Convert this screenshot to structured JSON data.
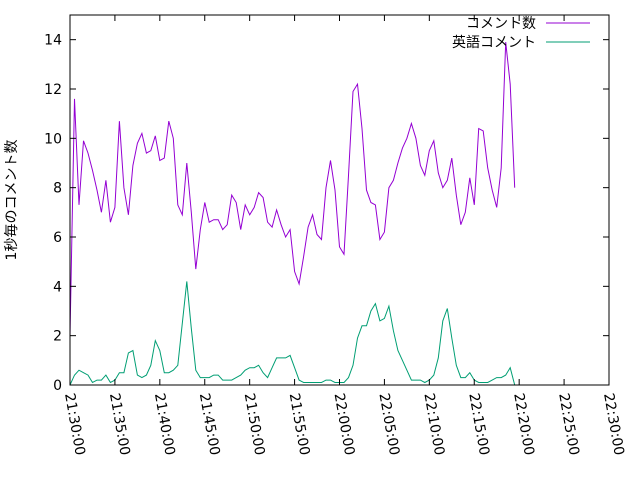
{
  "chart_data": {
    "type": "line",
    "ylabel": "1秒毎のコメント数",
    "xlabel": "",
    "title": "",
    "ylim": [
      0,
      15
    ],
    "xlim": [
      "21:30:00",
      "22:30:00"
    ],
    "x_ticks": [
      "21:30:00",
      "21:35:00",
      "21:40:00",
      "21:45:00",
      "21:50:00",
      "21:55:00",
      "22:00:00",
      "22:05:00",
      "22:10:00",
      "22:15:00",
      "22:20:00",
      "22:25:00",
      "22:30:00"
    ],
    "y_ticks": [
      "0",
      "2",
      "4",
      "6",
      "8",
      "10",
      "12",
      "14"
    ],
    "legend_position": "top-right",
    "grid": false,
    "series": [
      {
        "name": "コメント数",
        "color": "#9400d3",
        "points": [
          [
            "21:30:00",
            2.0
          ],
          [
            "21:30:30",
            11.6
          ],
          [
            "21:31:00",
            7.3
          ],
          [
            "21:31:30",
            9.9
          ],
          [
            "21:32:00",
            9.4
          ],
          [
            "21:32:30",
            8.7
          ],
          [
            "21:33:00",
            7.9
          ],
          [
            "21:33:30",
            7.0
          ],
          [
            "21:34:00",
            8.3
          ],
          [
            "21:34:30",
            6.6
          ],
          [
            "21:35:00",
            7.2
          ],
          [
            "21:35:30",
            10.7
          ],
          [
            "21:36:00",
            8.0
          ],
          [
            "21:36:30",
            6.9
          ],
          [
            "21:37:00",
            8.9
          ],
          [
            "21:37:30",
            9.8
          ],
          [
            "21:38:00",
            10.2
          ],
          [
            "21:38:30",
            9.4
          ],
          [
            "21:39:00",
            9.5
          ],
          [
            "21:39:30",
            10.1
          ],
          [
            "21:40:00",
            9.1
          ],
          [
            "21:40:30",
            9.2
          ],
          [
            "21:41:00",
            10.7
          ],
          [
            "21:41:30",
            10.0
          ],
          [
            "21:42:00",
            7.3
          ],
          [
            "21:42:30",
            6.9
          ],
          [
            "21:43:00",
            9.0
          ],
          [
            "21:43:30",
            7.0
          ],
          [
            "21:44:00",
            4.7
          ],
          [
            "21:44:30",
            6.3
          ],
          [
            "21:45:00",
            7.4
          ],
          [
            "21:45:30",
            6.6
          ],
          [
            "21:46:00",
            6.7
          ],
          [
            "21:46:30",
            6.7
          ],
          [
            "21:47:00",
            6.3
          ],
          [
            "21:47:30",
            6.5
          ],
          [
            "21:48:00",
            7.7
          ],
          [
            "21:48:30",
            7.4
          ],
          [
            "21:49:00",
            6.3
          ],
          [
            "21:49:30",
            7.3
          ],
          [
            "21:50:00",
            6.9
          ],
          [
            "21:50:30",
            7.2
          ],
          [
            "21:51:00",
            7.8
          ],
          [
            "21:51:30",
            7.6
          ],
          [
            "21:52:00",
            6.6
          ],
          [
            "21:52:30",
            6.4
          ],
          [
            "21:53:00",
            7.1
          ],
          [
            "21:53:30",
            6.5
          ],
          [
            "21:54:00",
            6.0
          ],
          [
            "21:54:30",
            6.3
          ],
          [
            "21:55:00",
            4.6
          ],
          [
            "21:55:30",
            4.1
          ],
          [
            "21:56:00",
            5.2
          ],
          [
            "21:56:30",
            6.4
          ],
          [
            "21:57:00",
            6.9
          ],
          [
            "21:57:30",
            6.1
          ],
          [
            "21:58:00",
            5.9
          ],
          [
            "21:58:30",
            8.0
          ],
          [
            "21:59:00",
            9.1
          ],
          [
            "21:59:30",
            7.9
          ],
          [
            "22:00:00",
            5.6
          ],
          [
            "22:00:30",
            5.3
          ],
          [
            "22:01:00",
            8.5
          ],
          [
            "22:01:30",
            11.9
          ],
          [
            "22:02:00",
            12.2
          ],
          [
            "22:02:30",
            10.4
          ],
          [
            "22:03:00",
            7.9
          ],
          [
            "22:03:30",
            7.4
          ],
          [
            "22:04:00",
            7.3
          ],
          [
            "22:04:30",
            5.9
          ],
          [
            "22:05:00",
            6.2
          ],
          [
            "22:05:30",
            8.0
          ],
          [
            "22:06:00",
            8.3
          ],
          [
            "22:06:30",
            9.0
          ],
          [
            "22:07:00",
            9.6
          ],
          [
            "22:07:30",
            10.0
          ],
          [
            "22:08:00",
            10.6
          ],
          [
            "22:08:30",
            10.0
          ],
          [
            "22:09:00",
            8.9
          ],
          [
            "22:09:30",
            8.5
          ],
          [
            "22:10:00",
            9.5
          ],
          [
            "22:10:30",
            9.9
          ],
          [
            "22:11:00",
            8.6
          ],
          [
            "22:11:30",
            8.0
          ],
          [
            "22:12:00",
            8.3
          ],
          [
            "22:12:30",
            9.2
          ],
          [
            "22:13:00",
            7.7
          ],
          [
            "22:13:30",
            6.5
          ],
          [
            "22:14:00",
            7.0
          ],
          [
            "22:14:30",
            8.4
          ],
          [
            "22:15:00",
            7.3
          ],
          [
            "22:15:30",
            10.4
          ],
          [
            "22:16:00",
            10.3
          ],
          [
            "22:16:30",
            8.8
          ],
          [
            "22:17:00",
            7.9
          ],
          [
            "22:17:30",
            7.2
          ],
          [
            "22:18:00",
            8.8
          ],
          [
            "22:18:30",
            13.9
          ],
          [
            "22:19:00",
            12.2
          ],
          [
            "22:19:30",
            8.0
          ]
        ]
      },
      {
        "name": "英語コメント",
        "color": "#009e73",
        "points": [
          [
            "21:30:00",
            0.0
          ],
          [
            "21:30:30",
            0.4
          ],
          [
            "21:31:00",
            0.6
          ],
          [
            "21:31:30",
            0.5
          ],
          [
            "21:32:00",
            0.4
          ],
          [
            "21:32:30",
            0.1
          ],
          [
            "21:33:00",
            0.2
          ],
          [
            "21:33:30",
            0.2
          ],
          [
            "21:34:00",
            0.4
          ],
          [
            "21:34:30",
            0.1
          ],
          [
            "21:35:00",
            0.2
          ],
          [
            "21:35:30",
            0.5
          ],
          [
            "21:36:00",
            0.5
          ],
          [
            "21:36:30",
            1.3
          ],
          [
            "21:37:00",
            1.4
          ],
          [
            "21:37:30",
            0.4
          ],
          [
            "21:38:00",
            0.3
          ],
          [
            "21:38:30",
            0.4
          ],
          [
            "21:39:00",
            0.8
          ],
          [
            "21:39:30",
            1.8
          ],
          [
            "21:40:00",
            1.4
          ],
          [
            "21:40:30",
            0.5
          ],
          [
            "21:41:00",
            0.5
          ],
          [
            "21:41:30",
            0.6
          ],
          [
            "21:42:00",
            0.8
          ],
          [
            "21:42:30",
            2.5
          ],
          [
            "21:43:00",
            4.2
          ],
          [
            "21:43:30",
            2.3
          ],
          [
            "21:44:00",
            0.6
          ],
          [
            "21:44:30",
            0.3
          ],
          [
            "21:45:00",
            0.3
          ],
          [
            "21:45:30",
            0.3
          ],
          [
            "21:46:00",
            0.4
          ],
          [
            "21:46:30",
            0.4
          ],
          [
            "21:47:00",
            0.2
          ],
          [
            "21:47:30",
            0.2
          ],
          [
            "21:48:00",
            0.2
          ],
          [
            "21:48:30",
            0.3
          ],
          [
            "21:49:00",
            0.4
          ],
          [
            "21:49:30",
            0.6
          ],
          [
            "21:50:00",
            0.7
          ],
          [
            "21:50:30",
            0.7
          ],
          [
            "21:51:00",
            0.8
          ],
          [
            "21:51:30",
            0.5
          ],
          [
            "21:52:00",
            0.3
          ],
          [
            "21:52:30",
            0.7
          ],
          [
            "21:53:00",
            1.1
          ],
          [
            "21:53:30",
            1.1
          ],
          [
            "21:54:00",
            1.1
          ],
          [
            "21:54:30",
            1.2
          ],
          [
            "21:55:00",
            0.7
          ],
          [
            "21:55:30",
            0.2
          ],
          [
            "21:56:00",
            0.1
          ],
          [
            "21:56:30",
            0.1
          ],
          [
            "21:57:00",
            0.1
          ],
          [
            "21:57:30",
            0.1
          ],
          [
            "21:58:00",
            0.1
          ],
          [
            "21:58:30",
            0.2
          ],
          [
            "21:59:00",
            0.2
          ],
          [
            "21:59:30",
            0.1
          ],
          [
            "22:00:00",
            0.1
          ],
          [
            "22:00:30",
            0.1
          ],
          [
            "22:01:00",
            0.3
          ],
          [
            "22:01:30",
            0.8
          ],
          [
            "22:02:00",
            1.9
          ],
          [
            "22:02:30",
            2.4
          ],
          [
            "22:03:00",
            2.4
          ],
          [
            "22:03:30",
            3.0
          ],
          [
            "22:04:00",
            3.3
          ],
          [
            "22:04:30",
            2.6
          ],
          [
            "22:05:00",
            2.7
          ],
          [
            "22:05:30",
            3.2
          ],
          [
            "22:06:00",
            2.2
          ],
          [
            "22:06:30",
            1.4
          ],
          [
            "22:07:00",
            1.0
          ],
          [
            "22:07:30",
            0.6
          ],
          [
            "22:08:00",
            0.2
          ],
          [
            "22:08:30",
            0.2
          ],
          [
            "22:09:00",
            0.2
          ],
          [
            "22:09:30",
            0.1
          ],
          [
            "22:10:00",
            0.2
          ],
          [
            "22:10:30",
            0.4
          ],
          [
            "22:11:00",
            1.1
          ],
          [
            "22:11:30",
            2.6
          ],
          [
            "22:12:00",
            3.1
          ],
          [
            "22:12:30",
            1.9
          ],
          [
            "22:13:00",
            0.8
          ],
          [
            "22:13:30",
            0.3
          ],
          [
            "22:14:00",
            0.3
          ],
          [
            "22:14:30",
            0.5
          ],
          [
            "22:15:00",
            0.2
          ],
          [
            "22:15:30",
            0.1
          ],
          [
            "22:16:00",
            0.1
          ],
          [
            "22:16:30",
            0.1
          ],
          [
            "22:17:00",
            0.2
          ],
          [
            "22:17:30",
            0.3
          ],
          [
            "22:18:00",
            0.3
          ],
          [
            "22:18:30",
            0.4
          ],
          [
            "22:19:00",
            0.7
          ],
          [
            "22:19:30",
            0.0
          ]
        ]
      }
    ]
  }
}
